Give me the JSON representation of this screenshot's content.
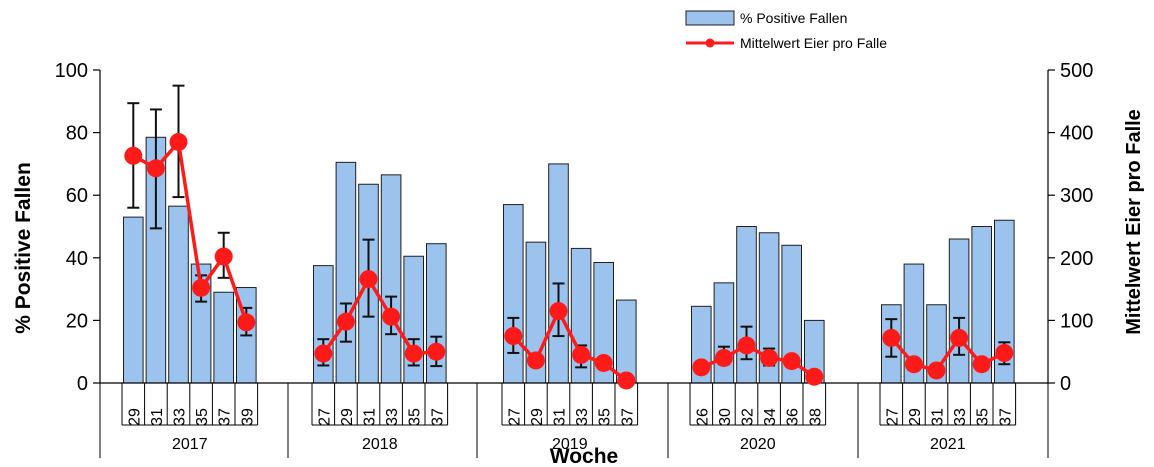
{
  "chart_data": {
    "type": "bar",
    "xlabel": "Woche",
    "ylabel_left": "% Positive Fallen",
    "ylabel_right": "Mittelwert  Eier pro Falle",
    "ylim_left": [
      0,
      100
    ],
    "ylim_right": [
      0,
      500
    ],
    "yticks_left": [
      "0",
      "20",
      "40",
      "60",
      "80",
      "100"
    ],
    "yticks_right": [
      "0",
      "100",
      "200",
      "300",
      "400",
      "500"
    ],
    "legend": {
      "position": "top-right",
      "bar_label": "% Positive Fallen",
      "line_label": "Mittelwert Eier pro Falle"
    },
    "colors": {
      "bar_fill": "#9cc3ee",
      "bar_stroke": "#1f1f1f",
      "line": "#ff1a1a",
      "error": "#111111"
    },
    "groups": [
      {
        "year": "2017",
        "weeks": [
          "29",
          "31",
          "33",
          "35",
          "37",
          "39"
        ],
        "bars": [
          53,
          78.5,
          56.5,
          38,
          29,
          30.5
        ],
        "bar_err": [
          null,
          null,
          null,
          null,
          null,
          null
        ],
        "eggs": [
          363,
          343,
          385,
          152,
          202,
          97
        ],
        "eggs_err": [
          [
            280,
            447
          ],
          [
            247,
            437
          ],
          [
            297,
            475
          ],
          [
            130,
            172
          ],
          [
            168,
            240
          ],
          [
            76,
            120
          ]
        ]
      },
      {
        "year": "2018",
        "weeks": [
          "27",
          "29",
          "31",
          "33",
          "35",
          "37"
        ],
        "bars": [
          37.5,
          70.5,
          63.5,
          66.5,
          40.5,
          44.5
        ],
        "bar_err": [
          null,
          null,
          null,
          null,
          null,
          null
        ],
        "eggs": [
          47,
          98,
          166,
          106,
          47,
          50
        ],
        "eggs_err": [
          [
            28,
            70
          ],
          [
            66,
            127
          ],
          [
            106,
            229
          ],
          [
            78,
            138
          ],
          [
            28,
            70
          ],
          [
            27,
            74
          ]
        ]
      },
      {
        "year": "2019",
        "weeks": [
          "27",
          "29",
          "31",
          "33",
          "35",
          "37"
        ],
        "bars": [
          57,
          45,
          70,
          43,
          38.5,
          26.5
        ],
        "bar_err": [
          null,
          null,
          null,
          null,
          null,
          null
        ],
        "eggs": [
          75,
          36,
          115,
          45,
          32,
          4
        ],
        "eggs_err": [
          [
            48,
            104
          ],
          [
            null,
            null
          ],
          [
            75,
            159
          ],
          [
            25,
            60
          ],
          [
            null,
            null
          ],
          [
            null,
            null
          ]
        ]
      },
      {
        "year": "2020",
        "weeks": [
          "26",
          "30",
          "32",
          "34",
          "36",
          "38"
        ],
        "bars": [
          24.5,
          32,
          50,
          48,
          44,
          20
        ],
        "bar_err": [
          null,
          null,
          null,
          null,
          null,
          null
        ],
        "eggs": [
          25,
          40,
          60,
          40,
          35,
          10
        ],
        "eggs_err": [
          [
            null,
            null
          ],
          [
            30,
            58
          ],
          [
            38,
            90
          ],
          [
            28,
            55
          ],
          [
            null,
            null
          ],
          [
            null,
            null
          ]
        ]
      },
      {
        "year": "2021",
        "weeks": [
          "27",
          "29",
          "31",
          "33",
          "35",
          "37"
        ],
        "bars": [
          25,
          38,
          25,
          46,
          50,
          52
        ],
        "bar_err": [
          null,
          null,
          null,
          null,
          null,
          null
        ],
        "eggs": [
          72,
          30,
          20,
          72,
          30,
          48
        ],
        "eggs_err": [
          [
            42,
            102
          ],
          [
            null,
            null
          ],
          [
            null,
            null
          ],
          [
            45,
            104
          ],
          [
            null,
            null
          ],
          [
            30,
            65
          ]
        ]
      }
    ]
  }
}
